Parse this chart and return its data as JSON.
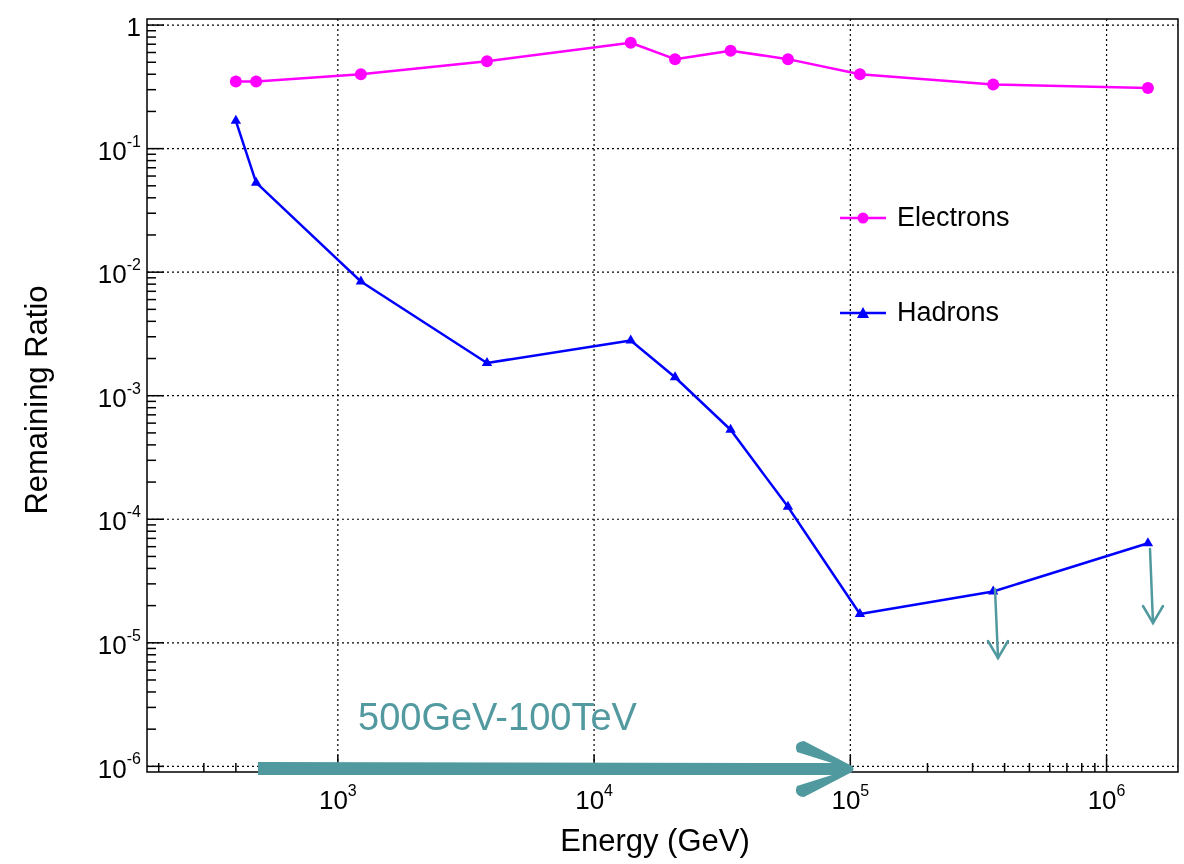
{
  "chart_data": {
    "type": "line",
    "xlabel": "Energy (GeV)",
    "ylabel": "Remaining Ratio",
    "log": "xy",
    "grid": true,
    "legend": "right",
    "line_style": "solid",
    "annotations": [
      "500GeV-100TeV"
    ],
    "xlim": [
      180,
      1900000
    ],
    "ylim": [
      9e-07,
      1.12
    ],
    "xticks": [
      {
        "value": 200,
        "label": null
      },
      {
        "value": 300,
        "label": null
      },
      {
        "value": 400,
        "label": null
      },
      {
        "value": 500,
        "label": null
      },
      {
        "value": 600,
        "label": null
      },
      {
        "value": 700,
        "label": null
      },
      {
        "value": 800,
        "label": null
      },
      {
        "value": 900,
        "label": null
      },
      {
        "value": 1000,
        "label": "10$^{3}$"
      },
      {
        "value": 2000,
        "label": null
      },
      {
        "value": 3000,
        "label": null
      },
      {
        "value": 4000,
        "label": null
      },
      {
        "value": 5000,
        "label": null
      },
      {
        "value": 6000,
        "label": null
      },
      {
        "value": 7000,
        "label": null
      },
      {
        "value": 8000,
        "label": null
      },
      {
        "value": 9000,
        "label": null
      },
      {
        "value": 10000,
        "label": "10$^{4}$"
      },
      {
        "value": 20000,
        "label": null
      },
      {
        "value": 30000,
        "label": null
      },
      {
        "value": 40000,
        "label": null
      },
      {
        "value": 50000,
        "label": null
      },
      {
        "value": 60000,
        "label": null
      },
      {
        "value": 70000,
        "label": null
      },
      {
        "value": 80000,
        "label": null
      },
      {
        "value": 90000,
        "label": null
      },
      {
        "value": 100000,
        "label": "10$^{5}$"
      },
      {
        "value": 200000,
        "label": null
      },
      {
        "value": 300000,
        "label": null
      },
      {
        "value": 400000,
        "label": null
      },
      {
        "value": 500000,
        "label": null
      },
      {
        "value": 600000,
        "label": null
      },
      {
        "value": 700000,
        "label": null
      },
      {
        "value": 800000,
        "label": null
      },
      {
        "value": 900000,
        "label": null
      },
      {
        "value": 1000000,
        "label": "10$^{6}$"
      }
    ],
    "yticks": [
      {
        "value": 1e-06,
        "label": "10$^{-6}$"
      },
      {
        "value": 2e-06,
        "label": null
      },
      {
        "value": 3e-06,
        "label": null
      },
      {
        "value": 4e-06,
        "label": null
      },
      {
        "value": 5e-06,
        "label": null
      },
      {
        "value": 6e-06,
        "label": null
      },
      {
        "value": 7e-06,
        "label": null
      },
      {
        "value": 8e-06,
        "label": null
      },
      {
        "value": 9e-06,
        "label": null
      },
      {
        "value": 1e-05,
        "label": "10$^{-5}$"
      },
      {
        "value": 2e-05,
        "label": null
      },
      {
        "value": 3e-05,
        "label": null
      },
      {
        "value": 4e-05,
        "label": null
      },
      {
        "value": 5e-05,
        "label": null
      },
      {
        "value": 6e-05,
        "label": null
      },
      {
        "value": 7e-05,
        "label": null
      },
      {
        "value": 8e-05,
        "label": null
      },
      {
        "value": 9e-05,
        "label": null
      },
      {
        "value": 0.0001,
        "label": "10$^{-4}$"
      },
      {
        "value": 0.0002,
        "label": null
      },
      {
        "value": 0.0003,
        "label": null
      },
      {
        "value": 0.0004,
        "label": null
      },
      {
        "value": 0.0005,
        "label": null
      },
      {
        "value": 0.0006,
        "label": null
      },
      {
        "value": 0.0007,
        "label": null
      },
      {
        "value": 0.0008,
        "label": null
      },
      {
        "value": 0.0009,
        "label": null
      },
      {
        "value": 0.001,
        "label": "10$^{-3}$"
      },
      {
        "value": 0.002,
        "label": null
      },
      {
        "value": 0.003,
        "label": null
      },
      {
        "value": 0.004,
        "label": null
      },
      {
        "value": 0.005,
        "label": null
      },
      {
        "value": 0.006,
        "label": null
      },
      {
        "value": 0.007,
        "label": null
      },
      {
        "value": 0.008,
        "label": null
      },
      {
        "value": 0.009,
        "label": null
      },
      {
        "value": 0.01,
        "label": "10$^{-2}$"
      },
      {
        "value": 0.02,
        "label": null
      },
      {
        "value": 0.03,
        "label": null
      },
      {
        "value": 0.04,
        "label": null
      },
      {
        "value": 0.05,
        "label": null
      },
      {
        "value": 0.06,
        "label": null
      },
      {
        "value": 0.07,
        "label": null
      },
      {
        "value": 0.08,
        "label": null
      },
      {
        "value": 0.09,
        "label": null
      },
      {
        "value": 0.1,
        "label": "10$^{-1}$"
      },
      {
        "value": 0.2,
        "label": null
      },
      {
        "value": 0.3,
        "label": null
      },
      {
        "value": 0.4,
        "label": null
      },
      {
        "value": 0.5,
        "label": null
      },
      {
        "value": 0.6,
        "label": null
      },
      {
        "value": 0.7,
        "label": null
      },
      {
        "value": 0.8,
        "label": null
      },
      {
        "value": 0.9,
        "label": null
      },
      1
    ],
    "x": [
      400,
      480,
      1230,
      3820,
      13900,
      20700,
      34100,
      57100,
      109000,
      361000,
      1450000
    ],
    "series": [
      {
        "name": "Electrons",
        "color": "#ff00ff",
        "marker": "circle",
        "values": [
          0.35,
          0.35,
          0.4,
          0.51,
          0.72,
          0.53,
          0.62,
          0.53,
          0.4,
          0.33,
          0.31
        ]
      },
      {
        "name": "Hadrons",
        "color": "#0000ff",
        "marker": "triangle",
        "values": [
          0.168,
          0.053,
          0.0084,
          0.00184,
          0.0028,
          0.00141,
          0.00053,
          0.000126,
          1.71e-05,
          2.6e-05,
          6.4e-05
        ]
      }
    ]
  }
}
